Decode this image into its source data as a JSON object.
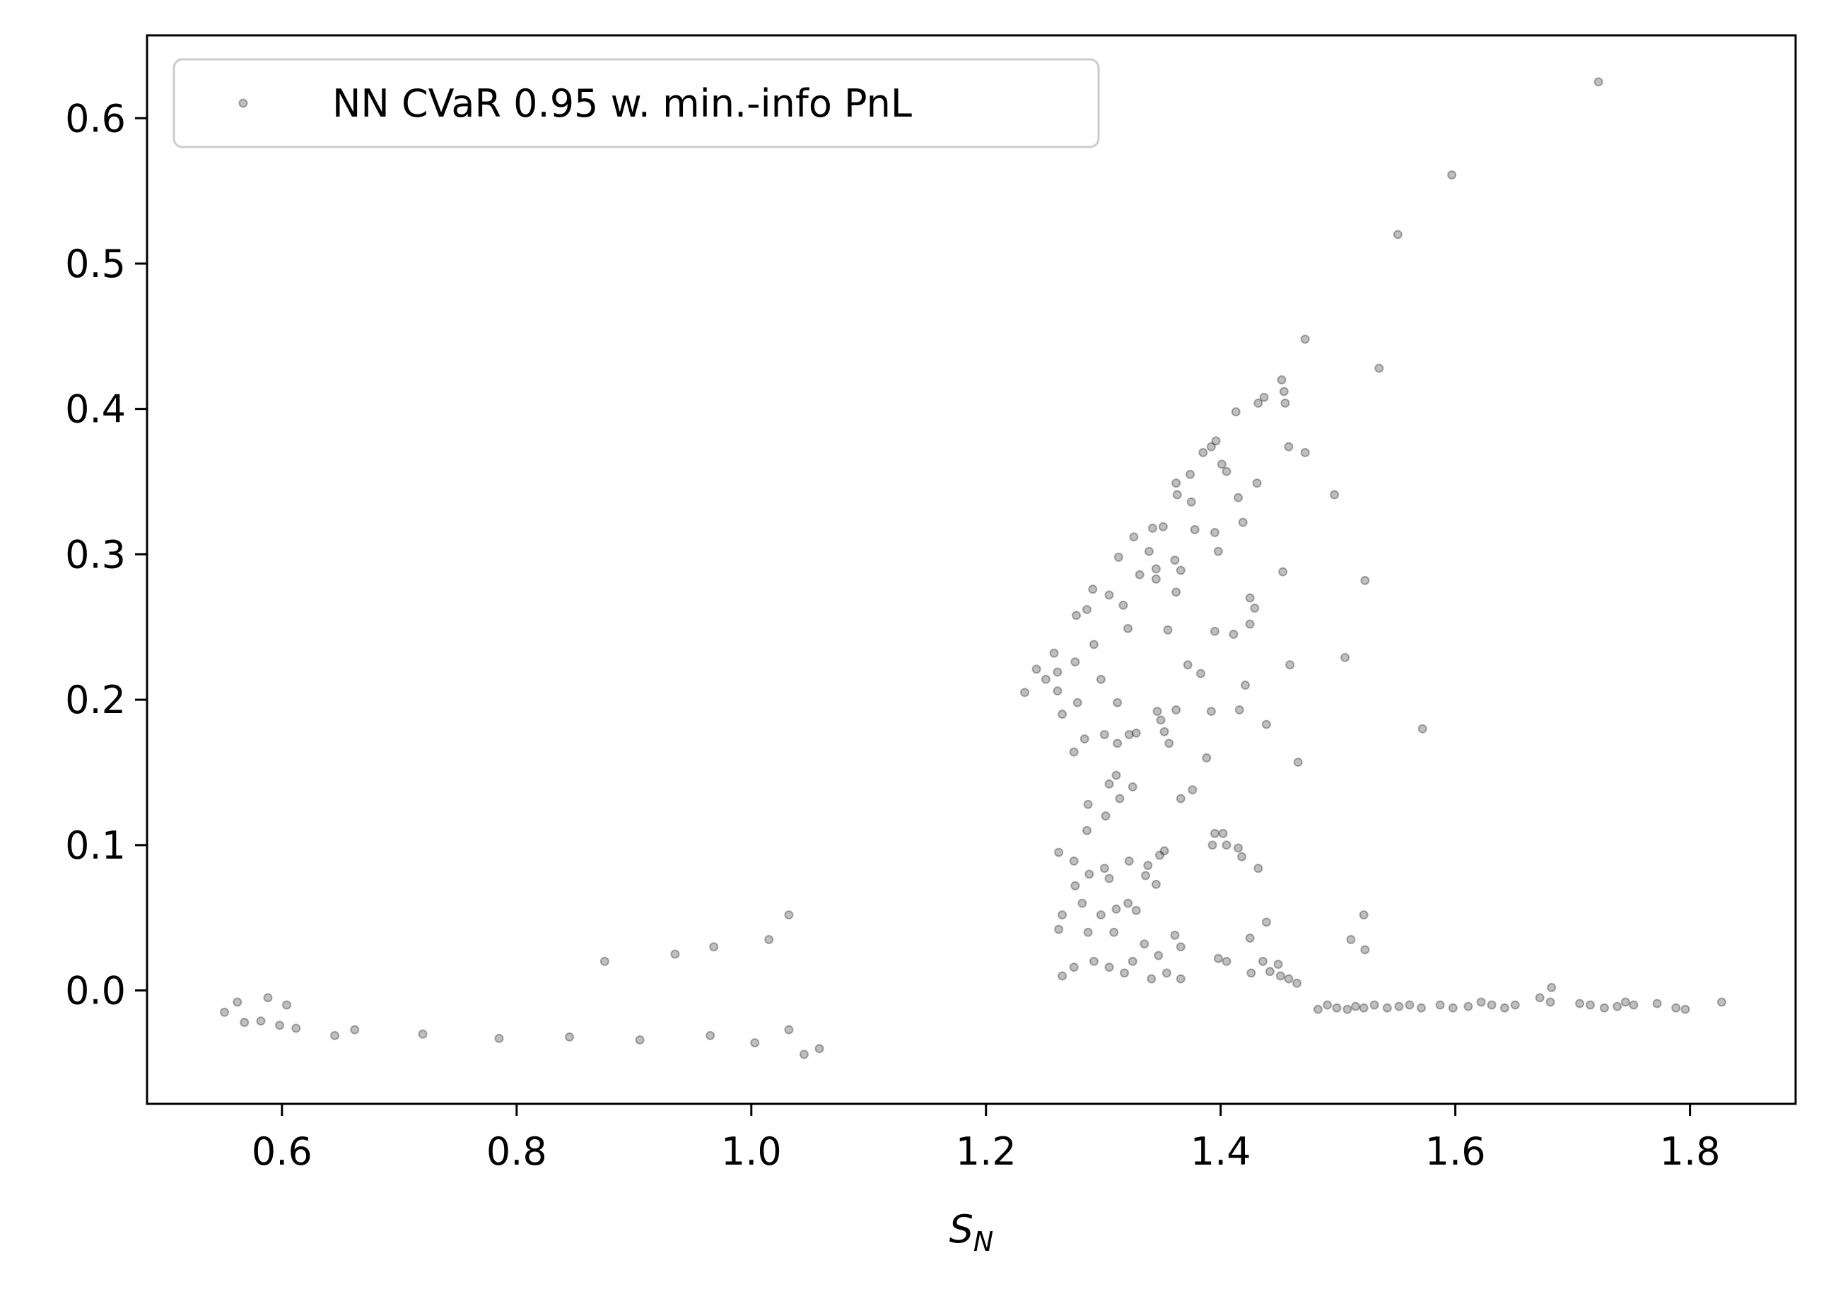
{
  "chart_data": {
    "type": "scatter",
    "title": "",
    "xlabel_main": "S",
    "xlabel_sub": "N",
    "ylabel": "",
    "xlim": [
      0.485,
      1.89
    ],
    "ylim": [
      -0.078,
      0.657
    ],
    "x_ticks": [
      {
        "value": 0.6,
        "label": "0.6"
      },
      {
        "value": 0.8,
        "label": "0.8"
      },
      {
        "value": 1.0,
        "label": "1.0"
      },
      {
        "value": 1.2,
        "label": "1.2"
      },
      {
        "value": 1.4,
        "label": "1.4"
      },
      {
        "value": 1.6,
        "label": "1.6"
      },
      {
        "value": 1.8,
        "label": "1.8"
      }
    ],
    "y_ticks": [
      {
        "value": 0.0,
        "label": "0.0"
      },
      {
        "value": 0.1,
        "label": "0.1"
      },
      {
        "value": 0.2,
        "label": "0.2"
      },
      {
        "value": 0.3,
        "label": "0.3"
      },
      {
        "value": 0.4,
        "label": "0.4"
      },
      {
        "value": 0.5,
        "label": "0.5"
      },
      {
        "value": 0.6,
        "label": "0.6"
      }
    ],
    "grid": false,
    "legend_position": "top-left",
    "marker_color": "#000000",
    "series": [
      {
        "name": "NN CVaR 0.95 w. min.-info PnL",
        "points": [
          [
            0.551,
            -0.015
          ],
          [
            0.562,
            -0.008
          ],
          [
            0.568,
            -0.022
          ],
          [
            0.582,
            -0.021
          ],
          [
            0.588,
            -0.005
          ],
          [
            0.598,
            -0.024
          ],
          [
            0.604,
            -0.01
          ],
          [
            0.612,
            -0.026
          ],
          [
            0.645,
            -0.031
          ],
          [
            0.662,
            -0.027
          ],
          [
            0.72,
            -0.03
          ],
          [
            0.785,
            -0.033
          ],
          [
            0.845,
            -0.032
          ],
          [
            0.905,
            -0.034
          ],
          [
            0.965,
            -0.031
          ],
          [
            1.003,
            -0.036
          ],
          [
            1.045,
            -0.044
          ],
          [
            1.058,
            -0.04
          ],
          [
            1.032,
            -0.027
          ],
          [
            0.875,
            0.02
          ],
          [
            0.935,
            0.025
          ],
          [
            0.968,
            0.03
          ],
          [
            1.015,
            0.035
          ],
          [
            1.032,
            0.052
          ],
          [
            1.722,
            0.625
          ],
          [
            1.597,
            0.561
          ],
          [
            1.551,
            0.52
          ],
          [
            1.472,
            0.448
          ],
          [
            1.535,
            0.428
          ],
          [
            1.452,
            0.42
          ],
          [
            1.454,
            0.412
          ],
          [
            1.437,
            0.408
          ],
          [
            1.432,
            0.404
          ],
          [
            1.455,
            0.404
          ],
          [
            1.413,
            0.398
          ],
          [
            1.458,
            0.374
          ],
          [
            1.472,
            0.37
          ],
          [
            1.396,
            0.378
          ],
          [
            1.392,
            0.374
          ],
          [
            1.385,
            0.37
          ],
          [
            1.401,
            0.362
          ],
          [
            1.405,
            0.357
          ],
          [
            1.374,
            0.355
          ],
          [
            1.362,
            0.349
          ],
          [
            1.431,
            0.349
          ],
          [
            1.415,
            0.339
          ],
          [
            1.497,
            0.341
          ],
          [
            1.363,
            0.341
          ],
          [
            1.375,
            0.336
          ],
          [
            1.419,
            0.322
          ],
          [
            1.351,
            0.319
          ],
          [
            1.342,
            0.318
          ],
          [
            1.378,
            0.317
          ],
          [
            1.326,
            0.312
          ],
          [
            1.395,
            0.315
          ],
          [
            1.398,
            0.302
          ],
          [
            1.339,
            0.302
          ],
          [
            1.313,
            0.298
          ],
          [
            1.361,
            0.296
          ],
          [
            1.453,
            0.288
          ],
          [
            1.523,
            0.282
          ],
          [
            1.345,
            0.29
          ],
          [
            1.331,
            0.286
          ],
          [
            1.345,
            0.283
          ],
          [
            1.366,
            0.289
          ],
          [
            1.291,
            0.276
          ],
          [
            1.305,
            0.272
          ],
          [
            1.362,
            0.274
          ],
          [
            1.425,
            0.27
          ],
          [
            1.429,
            0.263
          ],
          [
            1.425,
            0.252
          ],
          [
            1.317,
            0.265
          ],
          [
            1.286,
            0.262
          ],
          [
            1.277,
            0.258
          ],
          [
            1.355,
            0.248
          ],
          [
            1.321,
            0.249
          ],
          [
            1.395,
            0.247
          ],
          [
            1.411,
            0.245
          ],
          [
            1.506,
            0.229
          ],
          [
            1.459,
            0.224
          ],
          [
            1.372,
            0.224
          ],
          [
            1.421,
            0.21
          ],
          [
            1.383,
            0.218
          ],
          [
            1.292,
            0.238
          ],
          [
            1.276,
            0.226
          ],
          [
            1.258,
            0.232
          ],
          [
            1.261,
            0.219
          ],
          [
            1.243,
            0.221
          ],
          [
            1.251,
            0.214
          ],
          [
            1.298,
            0.214
          ],
          [
            1.312,
            0.198
          ],
          [
            1.261,
            0.206
          ],
          [
            1.278,
            0.198
          ],
          [
            1.233,
            0.205
          ],
          [
            1.265,
            0.19
          ],
          [
            1.416,
            0.193
          ],
          [
            1.392,
            0.192
          ],
          [
            1.362,
            0.193
          ],
          [
            1.346,
            0.192
          ],
          [
            1.349,
            0.186
          ],
          [
            1.439,
            0.183
          ],
          [
            1.572,
            0.18
          ],
          [
            1.352,
            0.178
          ],
          [
            1.328,
            0.177
          ],
          [
            1.322,
            0.176
          ],
          [
            1.301,
            0.176
          ],
          [
            1.284,
            0.173
          ],
          [
            1.312,
            0.17
          ],
          [
            1.356,
            0.17
          ],
          [
            1.466,
            0.157
          ],
          [
            1.388,
            0.16
          ],
          [
            1.275,
            0.164
          ],
          [
            1.311,
            0.148
          ],
          [
            1.325,
            0.14
          ],
          [
            1.376,
            0.138
          ],
          [
            1.305,
            0.142
          ],
          [
            1.314,
            0.132
          ],
          [
            1.366,
            0.132
          ],
          [
            1.287,
            0.128
          ],
          [
            1.302,
            0.12
          ],
          [
            1.286,
            0.11
          ],
          [
            1.395,
            0.108
          ],
          [
            1.402,
            0.108
          ],
          [
            1.393,
            0.1
          ],
          [
            1.405,
            0.1
          ],
          [
            1.352,
            0.096
          ],
          [
            1.348,
            0.093
          ],
          [
            1.262,
            0.095
          ],
          [
            1.415,
            0.098
          ],
          [
            1.418,
            0.092
          ],
          [
            1.275,
            0.089
          ],
          [
            1.301,
            0.084
          ],
          [
            1.322,
            0.089
          ],
          [
            1.338,
            0.086
          ],
          [
            1.336,
            0.079
          ],
          [
            1.345,
            0.073
          ],
          [
            1.305,
            0.077
          ],
          [
            1.288,
            0.08
          ],
          [
            1.276,
            0.072
          ],
          [
            1.432,
            0.084
          ],
          [
            1.321,
            0.06
          ],
          [
            1.328,
            0.055
          ],
          [
            1.311,
            0.056
          ],
          [
            1.298,
            0.052
          ],
          [
            1.282,
            0.06
          ],
          [
            1.265,
            0.052
          ],
          [
            1.262,
            0.042
          ],
          [
            1.287,
            0.04
          ],
          [
            1.309,
            0.04
          ],
          [
            1.335,
            0.032
          ],
          [
            1.361,
            0.038
          ],
          [
            1.366,
            0.03
          ],
          [
            1.347,
            0.024
          ],
          [
            1.325,
            0.02
          ],
          [
            1.292,
            0.02
          ],
          [
            1.398,
            0.022
          ],
          [
            1.405,
            0.02
          ],
          [
            1.436,
            0.02
          ],
          [
            1.442,
            0.013
          ],
          [
            1.426,
            0.012
          ],
          [
            1.449,
            0.018
          ],
          [
            1.451,
            0.01
          ],
          [
            1.439,
            0.047
          ],
          [
            1.425,
            0.036
          ],
          [
            1.522,
            0.052
          ],
          [
            1.511,
            0.035
          ],
          [
            1.523,
            0.028
          ],
          [
            1.458,
            0.008
          ],
          [
            1.465,
            0.005
          ],
          [
            1.366,
            0.008
          ],
          [
            1.354,
            0.012
          ],
          [
            1.341,
            0.008
          ],
          [
            1.318,
            0.012
          ],
          [
            1.305,
            0.016
          ],
          [
            1.275,
            0.016
          ],
          [
            1.265,
            0.01
          ],
          [
            1.682,
            0.002
          ],
          [
            1.672,
            -0.005
          ],
          [
            1.681,
            -0.008
          ],
          [
            1.706,
            -0.009
          ],
          [
            1.715,
            -0.01
          ],
          [
            1.727,
            -0.012
          ],
          [
            1.738,
            -0.011
          ],
          [
            1.745,
            -0.008
          ],
          [
            1.752,
            -0.01
          ],
          [
            1.772,
            -0.009
          ],
          [
            1.788,
            -0.012
          ],
          [
            1.796,
            -0.013
          ],
          [
            1.827,
            -0.008
          ],
          [
            1.651,
            -0.01
          ],
          [
            1.642,
            -0.012
          ],
          [
            1.631,
            -0.01
          ],
          [
            1.622,
            -0.008
          ],
          [
            1.611,
            -0.011
          ],
          [
            1.598,
            -0.012
          ],
          [
            1.587,
            -0.01
          ],
          [
            1.571,
            -0.012
          ],
          [
            1.561,
            -0.01
          ],
          [
            1.552,
            -0.011
          ],
          [
            1.542,
            -0.012
          ],
          [
            1.531,
            -0.01
          ],
          [
            1.522,
            -0.012
          ],
          [
            1.515,
            -0.011
          ],
          [
            1.508,
            -0.013
          ],
          [
            1.499,
            -0.012
          ],
          [
            1.491,
            -0.01
          ],
          [
            1.483,
            -0.013
          ]
        ]
      }
    ]
  }
}
